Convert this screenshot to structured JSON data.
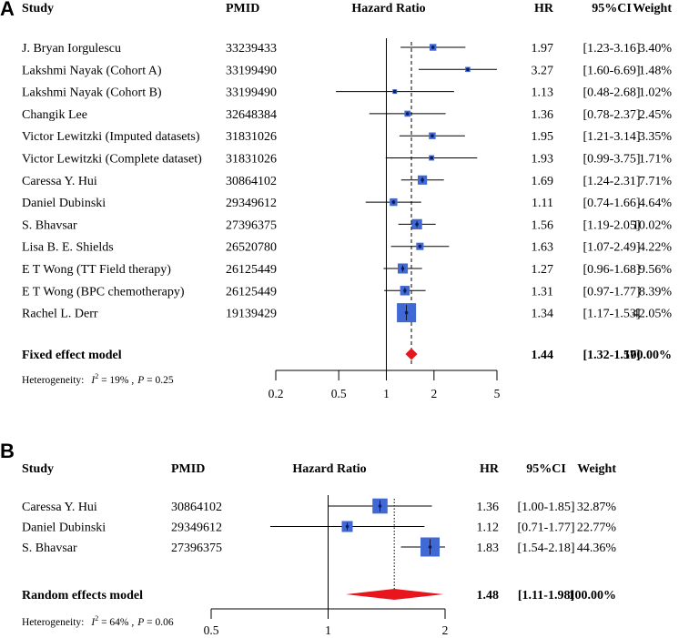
{
  "chart_data": [
    {
      "type": "forest",
      "panel_label": "A",
      "headers": {
        "study": "Study",
        "pmid": "PMID",
        "plot": "Hazard Ratio",
        "hr": "HR",
        "ci": "95%CI",
        "weight": "Weight"
      },
      "scale": "log",
      "xlim": [
        0.2,
        5
      ],
      "ticks": [
        0.2,
        0.5,
        1,
        2,
        5
      ],
      "tick_labels": [
        "0.2",
        "0.5",
        "1",
        "2",
        "5"
      ],
      "reference_line": 1,
      "summary_line": 1.44,
      "studies": [
        {
          "study": "J. Bryan Iorgulescu",
          "pmid": "33239433",
          "hr": 1.97,
          "lo": 1.23,
          "hi": 3.16,
          "hr_text": "1.97",
          "ci_text": "[1.23-3.16]",
          "weight": 3.4,
          "weight_text": "3.40%"
        },
        {
          "study": "Lakshmi Nayak (Cohort A)",
          "pmid": "33199490",
          "hr": 3.27,
          "lo": 1.6,
          "hi": 6.69,
          "hr_text": "3.27",
          "ci_text": "[1.60-6.69]",
          "weight": 1.48,
          "weight_text": "1.48%"
        },
        {
          "study": "Lakshmi Nayak (Cohort B)",
          "pmid": "33199490",
          "hr": 1.13,
          "lo": 0.48,
          "hi": 2.68,
          "hr_text": "1.13",
          "ci_text": "[0.48-2.68]",
          "weight": 1.02,
          "weight_text": "1.02%"
        },
        {
          "study": "Changik Lee",
          "pmid": "32648384",
          "hr": 1.36,
          "lo": 0.78,
          "hi": 2.37,
          "hr_text": "1.36",
          "ci_text": "[0.78-2.37]",
          "weight": 2.45,
          "weight_text": "2.45%"
        },
        {
          "study": "Victor Lewitzki (Imputed datasets)",
          "pmid": "31831026",
          "hr": 1.95,
          "lo": 1.21,
          "hi": 3.14,
          "hr_text": "1.95",
          "ci_text": "[1.21-3.14]",
          "weight": 3.35,
          "weight_text": "3.35%"
        },
        {
          "study": "Victor Lewitzki (Complete dataset)",
          "pmid": "31831026",
          "hr": 1.93,
          "lo": 0.99,
          "hi": 3.75,
          "hr_text": "1.93",
          "ci_text": "[0.99-3.75]",
          "weight": 1.71,
          "weight_text": "1.71%"
        },
        {
          "study": "Caressa Y. Hui",
          "pmid": "30864102",
          "hr": 1.69,
          "lo": 1.24,
          "hi": 2.31,
          "hr_text": "1.69",
          "ci_text": "[1.24-2.31]",
          "weight": 7.71,
          "weight_text": "7.71%"
        },
        {
          "study": "Daniel Dubinski",
          "pmid": "29349612",
          "hr": 1.11,
          "lo": 0.74,
          "hi": 1.66,
          "hr_text": "1.11",
          "ci_text": "[0.74-1.66]",
          "weight": 4.64,
          "weight_text": "4.64%"
        },
        {
          "study": "S. Bhavsar",
          "pmid": "27396375",
          "hr": 1.56,
          "lo": 1.19,
          "hi": 2.05,
          "hr_text": "1.56",
          "ci_text": "[1.19-2.05]",
          "weight": 10.02,
          "weight_text": "10.02%"
        },
        {
          "study": "Lisa B. E. Shields",
          "pmid": "26520780",
          "hr": 1.63,
          "lo": 1.07,
          "hi": 2.49,
          "hr_text": "1.63",
          "ci_text": "[1.07-2.49]",
          "weight": 4.22,
          "weight_text": "4.22%"
        },
        {
          "study": "E T Wong (TT Field therapy)",
          "pmid": "26125449",
          "hr": 1.27,
          "lo": 0.96,
          "hi": 1.68,
          "hr_text": "1.27",
          "ci_text": "[0.96-1.68]",
          "weight": 9.56,
          "weight_text": "9.56%"
        },
        {
          "study": "E T Wong (BPC chemotherapy)",
          "pmid": "26125449",
          "hr": 1.31,
          "lo": 0.97,
          "hi": 1.77,
          "hr_text": "1.31",
          "ci_text": "[0.97-1.77]",
          "weight": 8.39,
          "weight_text": "8.39%"
        },
        {
          "study": "Rachel L. Derr",
          "pmid": "19139429",
          "hr": 1.34,
          "lo": 1.17,
          "hi": 1.53,
          "hr_text": "1.34",
          "ci_text": "[1.17-1.53]",
          "weight": 42.05,
          "weight_text": "42.05%"
        }
      ],
      "summary": {
        "label": "Fixed effect model",
        "hr": 1.44,
        "lo": 1.32,
        "hi": 1.57,
        "hr_text": "1.44",
        "ci_text": "[1.32-1.57]",
        "weight_text": "100.00%"
      },
      "heterogeneity": {
        "prefix": "Heterogeneity:",
        "i2_symbol": "I",
        "i2_exp": "2",
        "i2_value": " = 19% ,",
        "p_symbol": "P",
        "p_value": " = 0.25"
      }
    },
    {
      "type": "forest",
      "panel_label": "B",
      "headers": {
        "study": "Study",
        "pmid": "PMID",
        "plot": "Hazard Ratio",
        "hr": "HR",
        "ci": "95%CI",
        "weight": "Weight"
      },
      "scale": "log",
      "xlim": [
        0.5,
        2
      ],
      "ticks": [
        0.5,
        1,
        2
      ],
      "tick_labels": [
        "0.5",
        "1",
        "2"
      ],
      "reference_line": 1,
      "summary_line": 1.48,
      "studies": [
        {
          "study": "Caressa Y. Hui",
          "pmid": "30864102",
          "hr": 1.36,
          "lo": 1.0,
          "hi": 1.85,
          "hr_text": "1.36",
          "ci_text": "[1.00-1.85]",
          "weight": 32.87,
          "weight_text": "32.87%"
        },
        {
          "study": "Daniel Dubinski",
          "pmid": "29349612",
          "hr": 1.12,
          "lo": 0.71,
          "hi": 1.77,
          "hr_text": "1.12",
          "ci_text": "[0.71-1.77]",
          "weight": 22.77,
          "weight_text": "22.77%"
        },
        {
          "study": "S. Bhavsar",
          "pmid": "27396375",
          "hr": 1.83,
          "lo": 1.54,
          "hi": 2.18,
          "hr_text": "1.83",
          "ci_text": "[1.54-2.18]",
          "weight": 44.36,
          "weight_text": "44.36%"
        }
      ],
      "summary": {
        "label": "Random effects model",
        "hr": 1.48,
        "lo": 1.11,
        "hi": 1.98,
        "hr_text": "1.48",
        "ci_text": "[1.11-1.98]",
        "weight_text": "100.00%"
      },
      "heterogeneity": {
        "prefix": "Heterogeneity:",
        "i2_symbol": "I",
        "i2_exp": "2",
        "i2_value": " = 64% ,",
        "p_symbol": "P",
        "p_value": " = 0.06"
      }
    }
  ],
  "colors": {
    "box": "#4169d6",
    "diamond": "#e8151d",
    "line": "#000000"
  }
}
